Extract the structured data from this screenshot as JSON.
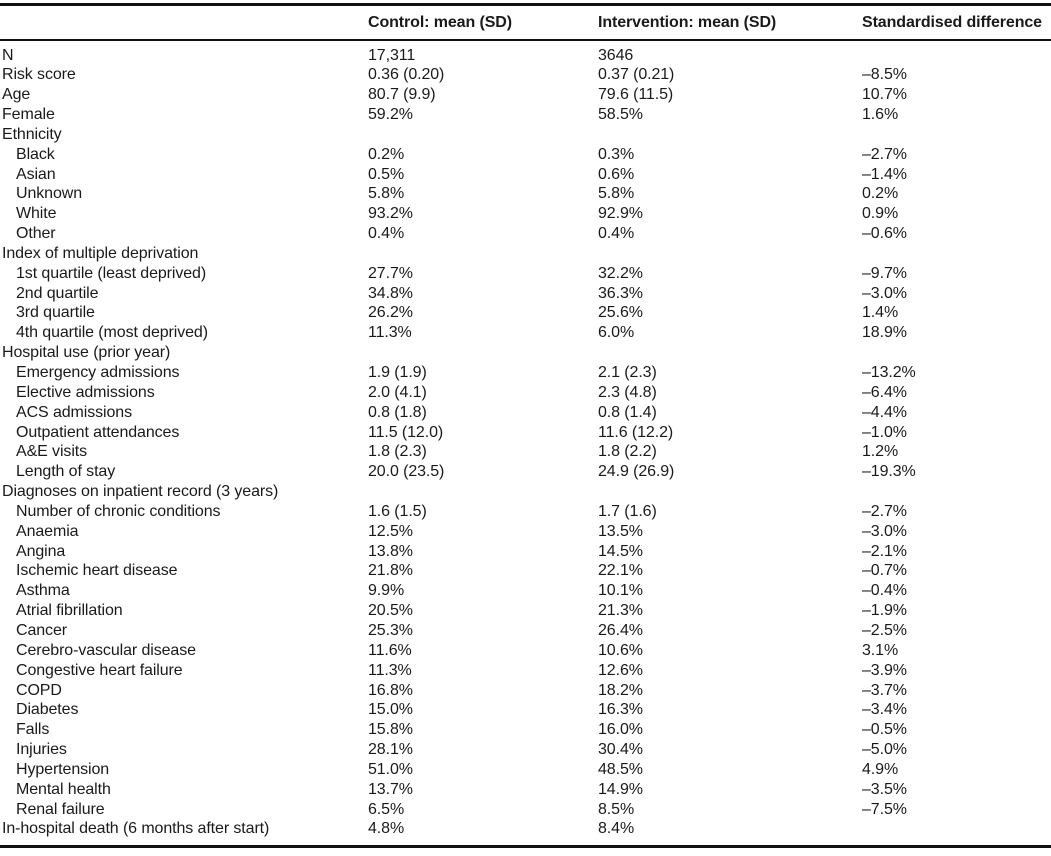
{
  "colors": {
    "background": "#ffffff",
    "text": "#1a1a1a",
    "rule": "#111111"
  },
  "table": {
    "columns": [
      "",
      "Control: mean (SD)",
      "Intervention: mean (SD)",
      "Standardised difference"
    ],
    "rows": [
      {
        "label": "N",
        "indent": 0,
        "control": "17,311",
        "intervention": "3646",
        "std_diff": ""
      },
      {
        "label": "Risk score",
        "indent": 0,
        "control": "0.36 (0.20)",
        "intervention": "0.37 (0.21)",
        "std_diff": "–8.5%"
      },
      {
        "label": "Age",
        "indent": 0,
        "control": "80.7 (9.9)",
        "intervention": "79.6 (11.5)",
        "std_diff": "10.7%"
      },
      {
        "label": "Female",
        "indent": 0,
        "control": "59.2%",
        "intervention": "58.5%",
        "std_diff": "1.6%"
      },
      {
        "label": "Ethnicity",
        "indent": 0,
        "control": "",
        "intervention": "",
        "std_diff": ""
      },
      {
        "label": "Black",
        "indent": 1,
        "control": "0.2%",
        "intervention": "0.3%",
        "std_diff": "–2.7%"
      },
      {
        "label": "Asian",
        "indent": 1,
        "control": "0.5%",
        "intervention": "0.6%",
        "std_diff": "–1.4%"
      },
      {
        "label": "Unknown",
        "indent": 1,
        "control": "5.8%",
        "intervention": "5.8%",
        "std_diff": "0.2%"
      },
      {
        "label": "White",
        "indent": 1,
        "control": "93.2%",
        "intervention": "92.9%",
        "std_diff": "0.9%"
      },
      {
        "label": "Other",
        "indent": 1,
        "control": "0.4%",
        "intervention": "0.4%",
        "std_diff": "–0.6%"
      },
      {
        "label": "Index of multiple deprivation",
        "indent": 0,
        "control": "",
        "intervention": "",
        "std_diff": ""
      },
      {
        "label": "1st quartile (least deprived)",
        "indent": 1,
        "control": "27.7%",
        "intervention": "32.2%",
        "std_diff": "–9.7%"
      },
      {
        "label": "2nd quartile",
        "indent": 1,
        "control": "34.8%",
        "intervention": "36.3%",
        "std_diff": "–3.0%"
      },
      {
        "label": "3rd quartile",
        "indent": 1,
        "control": "26.2%",
        "intervention": "25.6%",
        "std_diff": "1.4%"
      },
      {
        "label": "4th quartile (most deprived)",
        "indent": 1,
        "control": "11.3%",
        "intervention": "6.0%",
        "std_diff": "18.9%"
      },
      {
        "label": "Hospital use (prior year)",
        "indent": 0,
        "control": "",
        "intervention": "",
        "std_diff": ""
      },
      {
        "label": "Emergency admissions",
        "indent": 1,
        "control": "1.9 (1.9)",
        "intervention": "2.1 (2.3)",
        "std_diff": "–13.2%"
      },
      {
        "label": "Elective admissions",
        "indent": 1,
        "control": "2.0 (4.1)",
        "intervention": "2.3 (4.8)",
        "std_diff": "–6.4%"
      },
      {
        "label": "ACS admissions",
        "indent": 1,
        "control": "0.8 (1.8)",
        "intervention": "0.8 (1.4)",
        "std_diff": "–4.4%"
      },
      {
        "label": "Outpatient attendances",
        "indent": 1,
        "control": "11.5 (12.0)",
        "intervention": "11.6 (12.2)",
        "std_diff": "–1.0%"
      },
      {
        "label": "A&E visits",
        "indent": 1,
        "control": "1.8 (2.3)",
        "intervention": "1.8 (2.2)",
        "std_diff": "1.2%"
      },
      {
        "label": "Length of stay",
        "indent": 1,
        "control": "20.0 (23.5)",
        "intervention": "24.9 (26.9)",
        "std_diff": "–19.3%"
      },
      {
        "label": "Diagnoses on inpatient record (3 years)",
        "indent": 0,
        "control": "",
        "intervention": "",
        "std_diff": ""
      },
      {
        "label": "Number of chronic conditions",
        "indent": 1,
        "control": "1.6 (1.5)",
        "intervention": "1.7 (1.6)",
        "std_diff": "–2.7%"
      },
      {
        "label": "Anaemia",
        "indent": 1,
        "control": "12.5%",
        "intervention": "13.5%",
        "std_diff": "–3.0%"
      },
      {
        "label": "Angina",
        "indent": 1,
        "control": "13.8%",
        "intervention": "14.5%",
        "std_diff": "–2.1%"
      },
      {
        "label": "Ischemic heart disease",
        "indent": 1,
        "control": "21.8%",
        "intervention": "22.1%",
        "std_diff": "–0.7%"
      },
      {
        "label": "Asthma",
        "indent": 1,
        "control": "9.9%",
        "intervention": "10.1%",
        "std_diff": "–0.4%"
      },
      {
        "label": "Atrial fibrillation",
        "indent": 1,
        "control": "20.5%",
        "intervention": "21.3%",
        "std_diff": "–1.9%"
      },
      {
        "label": "Cancer",
        "indent": 1,
        "control": "25.3%",
        "intervention": "26.4%",
        "std_diff": "–2.5%"
      },
      {
        "label": "Cerebro-vascular disease",
        "indent": 1,
        "control": "11.6%",
        "intervention": "10.6%",
        "std_diff": "3.1%"
      },
      {
        "label": "Congestive heart failure",
        "indent": 1,
        "control": "11.3%",
        "intervention": "12.6%",
        "std_diff": "–3.9%"
      },
      {
        "label": "COPD",
        "indent": 1,
        "control": "16.8%",
        "intervention": "18.2%",
        "std_diff": "–3.7%"
      },
      {
        "label": "Diabetes",
        "indent": 1,
        "control": "15.0%",
        "intervention": "16.3%",
        "std_diff": "–3.4%"
      },
      {
        "label": "Falls",
        "indent": 1,
        "control": "15.8%",
        "intervention": "16.0%",
        "std_diff": "–0.5%"
      },
      {
        "label": "Injuries",
        "indent": 1,
        "control": "28.1%",
        "intervention": "30.4%",
        "std_diff": "–5.0%"
      },
      {
        "label": "Hypertension",
        "indent": 1,
        "control": "51.0%",
        "intervention": "48.5%",
        "std_diff": "4.9%"
      },
      {
        "label": "Mental health",
        "indent": 1,
        "control": "13.7%",
        "intervention": "14.9%",
        "std_diff": "–3.5%"
      },
      {
        "label": "Renal failure",
        "indent": 1,
        "control": "6.5%",
        "intervention": "8.5%",
        "std_diff": "–7.5%"
      },
      {
        "label": "In-hospital death (6 months after start)",
        "indent": 0,
        "control": "4.8%",
        "intervention": "8.4%",
        "std_diff": ""
      }
    ]
  }
}
